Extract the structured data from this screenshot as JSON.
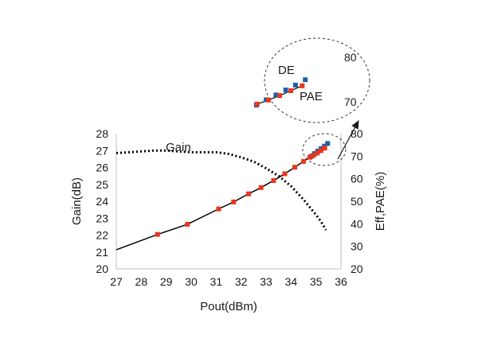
{
  "chart_data": {
    "type": "line",
    "xlabel": "Pout(dBm)",
    "ylabel_left": "Gain(dB)",
    "ylabel_right": "Eff,PAE(%)",
    "xlim": [
      27,
      36
    ],
    "ylim_left": [
      20,
      28
    ],
    "ylim_right": [
      20,
      80
    ],
    "x_ticks": [
      "27",
      "28",
      "29",
      "30",
      "31",
      "32",
      "33",
      "34",
      "35",
      "36"
    ],
    "y_left_ticks": [
      "20",
      "21",
      "22",
      "23",
      "24",
      "25",
      "26",
      "27",
      "28"
    ],
    "y_right_ticks": [
      "20",
      "30",
      "40",
      "50",
      "60",
      "70",
      "80"
    ],
    "grid": false,
    "series": [
      {
        "name": "Gain",
        "axis": "left",
        "style": "dotted",
        "color": "#000000",
        "x": [
          27.0,
          27.5,
          28.0,
          28.5,
          29.0,
          29.5,
          30.0,
          30.5,
          31.0,
          31.5,
          32.0,
          32.5,
          33.0,
          33.5,
          34.0,
          34.5,
          35.0,
          35.2,
          35.4
        ],
        "y": [
          26.85,
          26.9,
          26.95,
          27.0,
          27.0,
          26.95,
          26.9,
          26.9,
          26.9,
          26.8,
          26.6,
          26.35,
          25.95,
          25.5,
          24.9,
          24.1,
          23.2,
          22.8,
          22.3
        ]
      },
      {
        "name": "DE",
        "axis": "right",
        "style": "markers",
        "color": "#1f5fa8",
        "x": [
          34.72,
          34.85,
          34.98,
          35.11,
          35.24,
          35.37
        ],
        "y": [
          68.9,
          70.1,
          71.2,
          72.3,
          73.4,
          74.6
        ]
      },
      {
        "name": "PAE",
        "axis": "right",
        "style": "line-markers",
        "color": "#000000",
        "marker_color": "#e8361e",
        "x": [
          27.0,
          28.65,
          29.85,
          31.1,
          31.7,
          32.3,
          32.8,
          33.3,
          33.75,
          34.15,
          34.5,
          34.75,
          34.9,
          35.05,
          35.2,
          35.35
        ],
        "y": [
          28.5,
          35.3,
          39.8,
          46.6,
          49.7,
          53.3,
          56.1,
          59.2,
          62.2,
          65.1,
          67.7,
          69.5,
          70.4,
          71.4,
          72.5,
          73.6
        ]
      }
    ],
    "annotations": [
      {
        "text": "Gain"
      },
      {
        "text": "DE"
      },
      {
        "text": "PAE"
      }
    ],
    "inset": {
      "y_ticks": [
        "70",
        "80"
      ]
    }
  }
}
